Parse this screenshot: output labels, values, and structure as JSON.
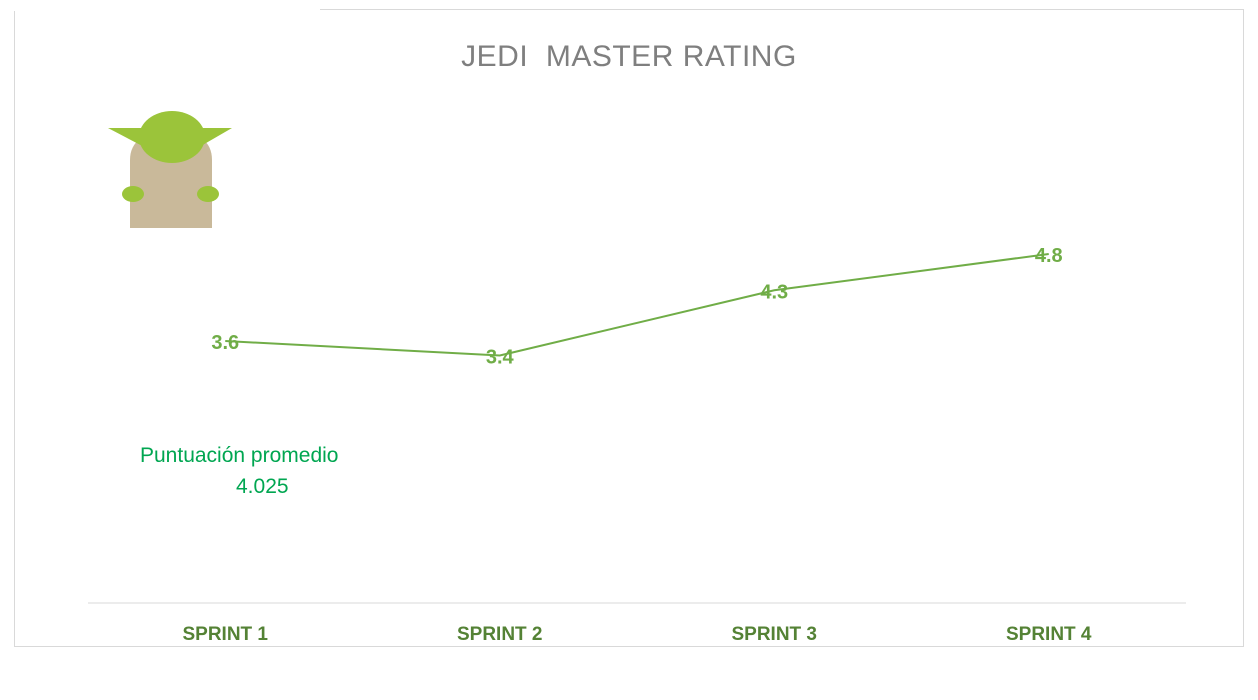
{
  "chart_data": {
    "type": "line",
    "title": "JEDI  MASTER RATING",
    "categories": [
      "SPRINT 1",
      "SPRINT 2",
      "SPRINT 3",
      "SPRINT 4"
    ],
    "series": [
      {
        "values": [
          3.6,
          3.4,
          4.3,
          4.8
        ],
        "color": "#70ad47"
      }
    ],
    "data_labels": [
      "3.6",
      "3.4",
      "4.3",
      "4.8"
    ],
    "xlabel": "",
    "ylabel": "",
    "grid": false,
    "legend": "none"
  },
  "annotation": {
    "label": "Puntuación promedio",
    "value": "4.025"
  },
  "colors": {
    "series": "#70ad47",
    "category_label": "#548235",
    "annotation": "#00a651",
    "title": "#7f7f7f",
    "axis": "#d9d9d9"
  },
  "icons": {
    "mascot": "yoda-icon"
  }
}
